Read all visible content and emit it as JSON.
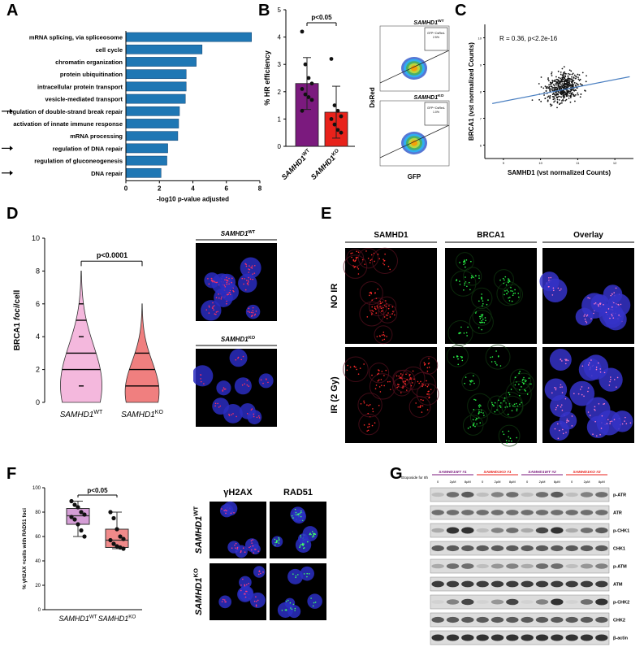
{
  "panels": {
    "A": {
      "letter": "A",
      "chart_data": {
        "type": "bar",
        "orientation": "horizontal",
        "categories": [
          "mRNA splicing, via spliceosome",
          "cell cycle",
          "chromatin organization",
          "protein ubiquitination",
          "intracellular protein transport",
          "vesicle-mediated transport",
          "regulation of double-strand break repair",
          "activation of innate immune response",
          "mRNA processing",
          "regulation of DNA repair",
          "regulation of gluconeogenesis",
          "DNA repair"
        ],
        "values": [
          7.5,
          4.55,
          4.2,
          3.6,
          3.6,
          3.55,
          3.2,
          3.15,
          3.1,
          2.5,
          2.45,
          2.1
        ],
        "arrowed": [
          false,
          false,
          false,
          false,
          false,
          false,
          true,
          false,
          false,
          true,
          false,
          true
        ],
        "xlabel": "-log10 p-value adjusted",
        "xticks": [
          "0",
          "2",
          "4",
          "6",
          "8"
        ],
        "xlim": [
          0,
          8
        ],
        "bar_color": "#1f77b4"
      }
    },
    "B": {
      "letter": "B",
      "chart_data": {
        "type": "bar",
        "categories": [
          "SAMHD1WT",
          "SAMHD1KO"
        ],
        "category_labels": [
          {
            "base": "SAMHD1",
            "sup": "WT"
          },
          {
            "base": "SAMHD1",
            "sup": "KO"
          }
        ],
        "values": [
          2.3,
          1.25
        ],
        "errors": [
          0.95,
          0.95
        ],
        "points": [
          [
            4.2,
            3.0,
            2.5,
            2.3,
            2.1,
            1.9,
            1.8,
            1.7,
            1.3
          ],
          [
            3.2,
            1.5,
            1.3,
            1.1,
            1.0,
            0.8,
            0.6,
            0.5
          ]
        ],
        "colors": [
          "#7b1a7e",
          "#e8221b"
        ],
        "ylabel": "% HR efficiency",
        "yticks": [
          "0",
          "1",
          "2",
          "3",
          "4",
          "5"
        ],
        "ylim": [
          0,
          5
        ],
        "sig": "p<0.05"
      },
      "flow": {
        "ylabel": "DsRed",
        "xlabel": "GFP",
        "plots": [
          {
            "title_base": "SAMHD1",
            "title_sup": "WT",
            "gate": "GFP+ DsRed-",
            "pct": "2.5%"
          },
          {
            "title_base": "SAMHD1",
            "title_sup": "KO",
            "gate": "GFP+ DsRed-",
            "pct": "1.0%"
          }
        ]
      }
    },
    "C": {
      "letter": "C",
      "chart_data": {
        "type": "scatter",
        "annotation": "R = 0.36, p<2.2e-16",
        "xlabel": "SAMHD1 (vst normalized Counts)",
        "ylabel": "BRCA1 (vst normalized Counts)",
        "xticks": [
          "9",
          "10",
          "11",
          "12"
        ],
        "yticks": [
          "6",
          "7",
          "8",
          "9",
          "10"
        ],
        "xlim": [
          8.5,
          12.5
        ],
        "ylim": [
          5.5,
          10.5
        ],
        "fit": {
          "x": [
            8.7,
            12.4
          ],
          "y": [
            7.55,
            8.55
          ]
        },
        "point_count": 450,
        "point_center": [
          10.6,
          8.15
        ],
        "point_spread": [
          0.5,
          0.55
        ]
      }
    },
    "D": {
      "letter": "D",
      "chart_data": {
        "type": "violin",
        "categories": [
          "SAMHD1WT",
          "SAMHD1KO"
        ],
        "category_labels": [
          {
            "base": "SAMHD1",
            "sup": "WT"
          },
          {
            "base": "SAMHD1",
            "sup": "KO"
          }
        ],
        "colors": [
          "#f4b8dd",
          "#f07f7f"
        ],
        "ylabel": "BRCA1 foci/cell",
        "ylabel_parts": {
          "a": "BRCA1 ",
          "b": "foci",
          "c": "/cell"
        },
        "yticks": [
          "0",
          "2",
          "4",
          "6",
          "8",
          "10"
        ],
        "ylim": [
          0,
          10
        ],
        "sig": "p<0.0001",
        "wt": {
          "max": 8,
          "q1": 2,
          "median": 3,
          "q3": 5,
          "extra": [
            1,
            4,
            6
          ]
        },
        "ko": {
          "max": 6,
          "q1": 1,
          "median": 2,
          "q3": 3,
          "extra": []
        }
      },
      "images": [
        {
          "base": "SAMHD1",
          "sup": "WT"
        },
        {
          "base": "SAMHD1",
          "sup": "KO"
        }
      ]
    },
    "E": {
      "letter": "E",
      "columns": [
        "SAMHD1",
        "BRCA1",
        "Overlay"
      ],
      "rows": [
        "NO IR",
        "IR (2 Gy)"
      ]
    },
    "F": {
      "letter": "F",
      "chart_data": {
        "type": "box",
        "categories": [
          "SAMHD1WT",
          "SAMHD1KO"
        ],
        "category_labels": [
          {
            "base": "SAMHD1",
            "sup": "WT"
          },
          {
            "base": "SAMHD1",
            "sup": "KO"
          }
        ],
        "colors": [
          "#d59ed6",
          "#f08a8a"
        ],
        "ylabel": "% γH2AX +cells with RAD51 foci",
        "yticks": [
          "0",
          "20",
          "40",
          "60",
          "80",
          "100"
        ],
        "ylim": [
          0,
          100
        ],
        "sig": "p<0.05",
        "boxes": [
          {
            "min": 60,
            "q1": 70,
            "median": 77,
            "q3": 83,
            "max": 89,
            "points": [
              89,
              86,
              84,
              80,
              78,
              76,
              74,
              70,
              65,
              60
            ]
          },
          {
            "min": 50,
            "q1": 51,
            "median": 57,
            "q3": 66,
            "max": 80,
            "points": [
              80,
              75,
              66,
              60,
              58,
              57,
              54,
              52,
              51,
              50
            ]
          }
        ]
      },
      "columns": [
        "γH2AX",
        "RAD51"
      ],
      "rows": [
        {
          "base": "SAMHD1",
          "sup": "WT"
        },
        {
          "base": "SAMHD1",
          "sup": "KO"
        }
      ]
    },
    "G": {
      "letter": "G",
      "groups": [
        {
          "label": "SAMHD1WT #1",
          "color": "#7b1a7e"
        },
        {
          "label": "SAMHD1KO #1",
          "color": "#e8221b"
        },
        {
          "label": "SAMHD1WT #2",
          "color": "#7b1a7e"
        },
        {
          "label": "SAMHD1KO #2",
          "color": "#e8221b"
        }
      ],
      "treatment": "Etoposide for 8h",
      "doses": [
        "0",
        "2μM",
        "8μM",
        "0",
        "2μM",
        "8μM",
        "0",
        "2μM",
        "8μM",
        "0",
        "2μM",
        "8μM"
      ],
      "bands": [
        "p-ATR",
        "ATR",
        "p-CHK1",
        "CHK1",
        "p-ATM",
        "ATM",
        "p-CHK2",
        "CHK2",
        "β-actin"
      ]
    }
  }
}
